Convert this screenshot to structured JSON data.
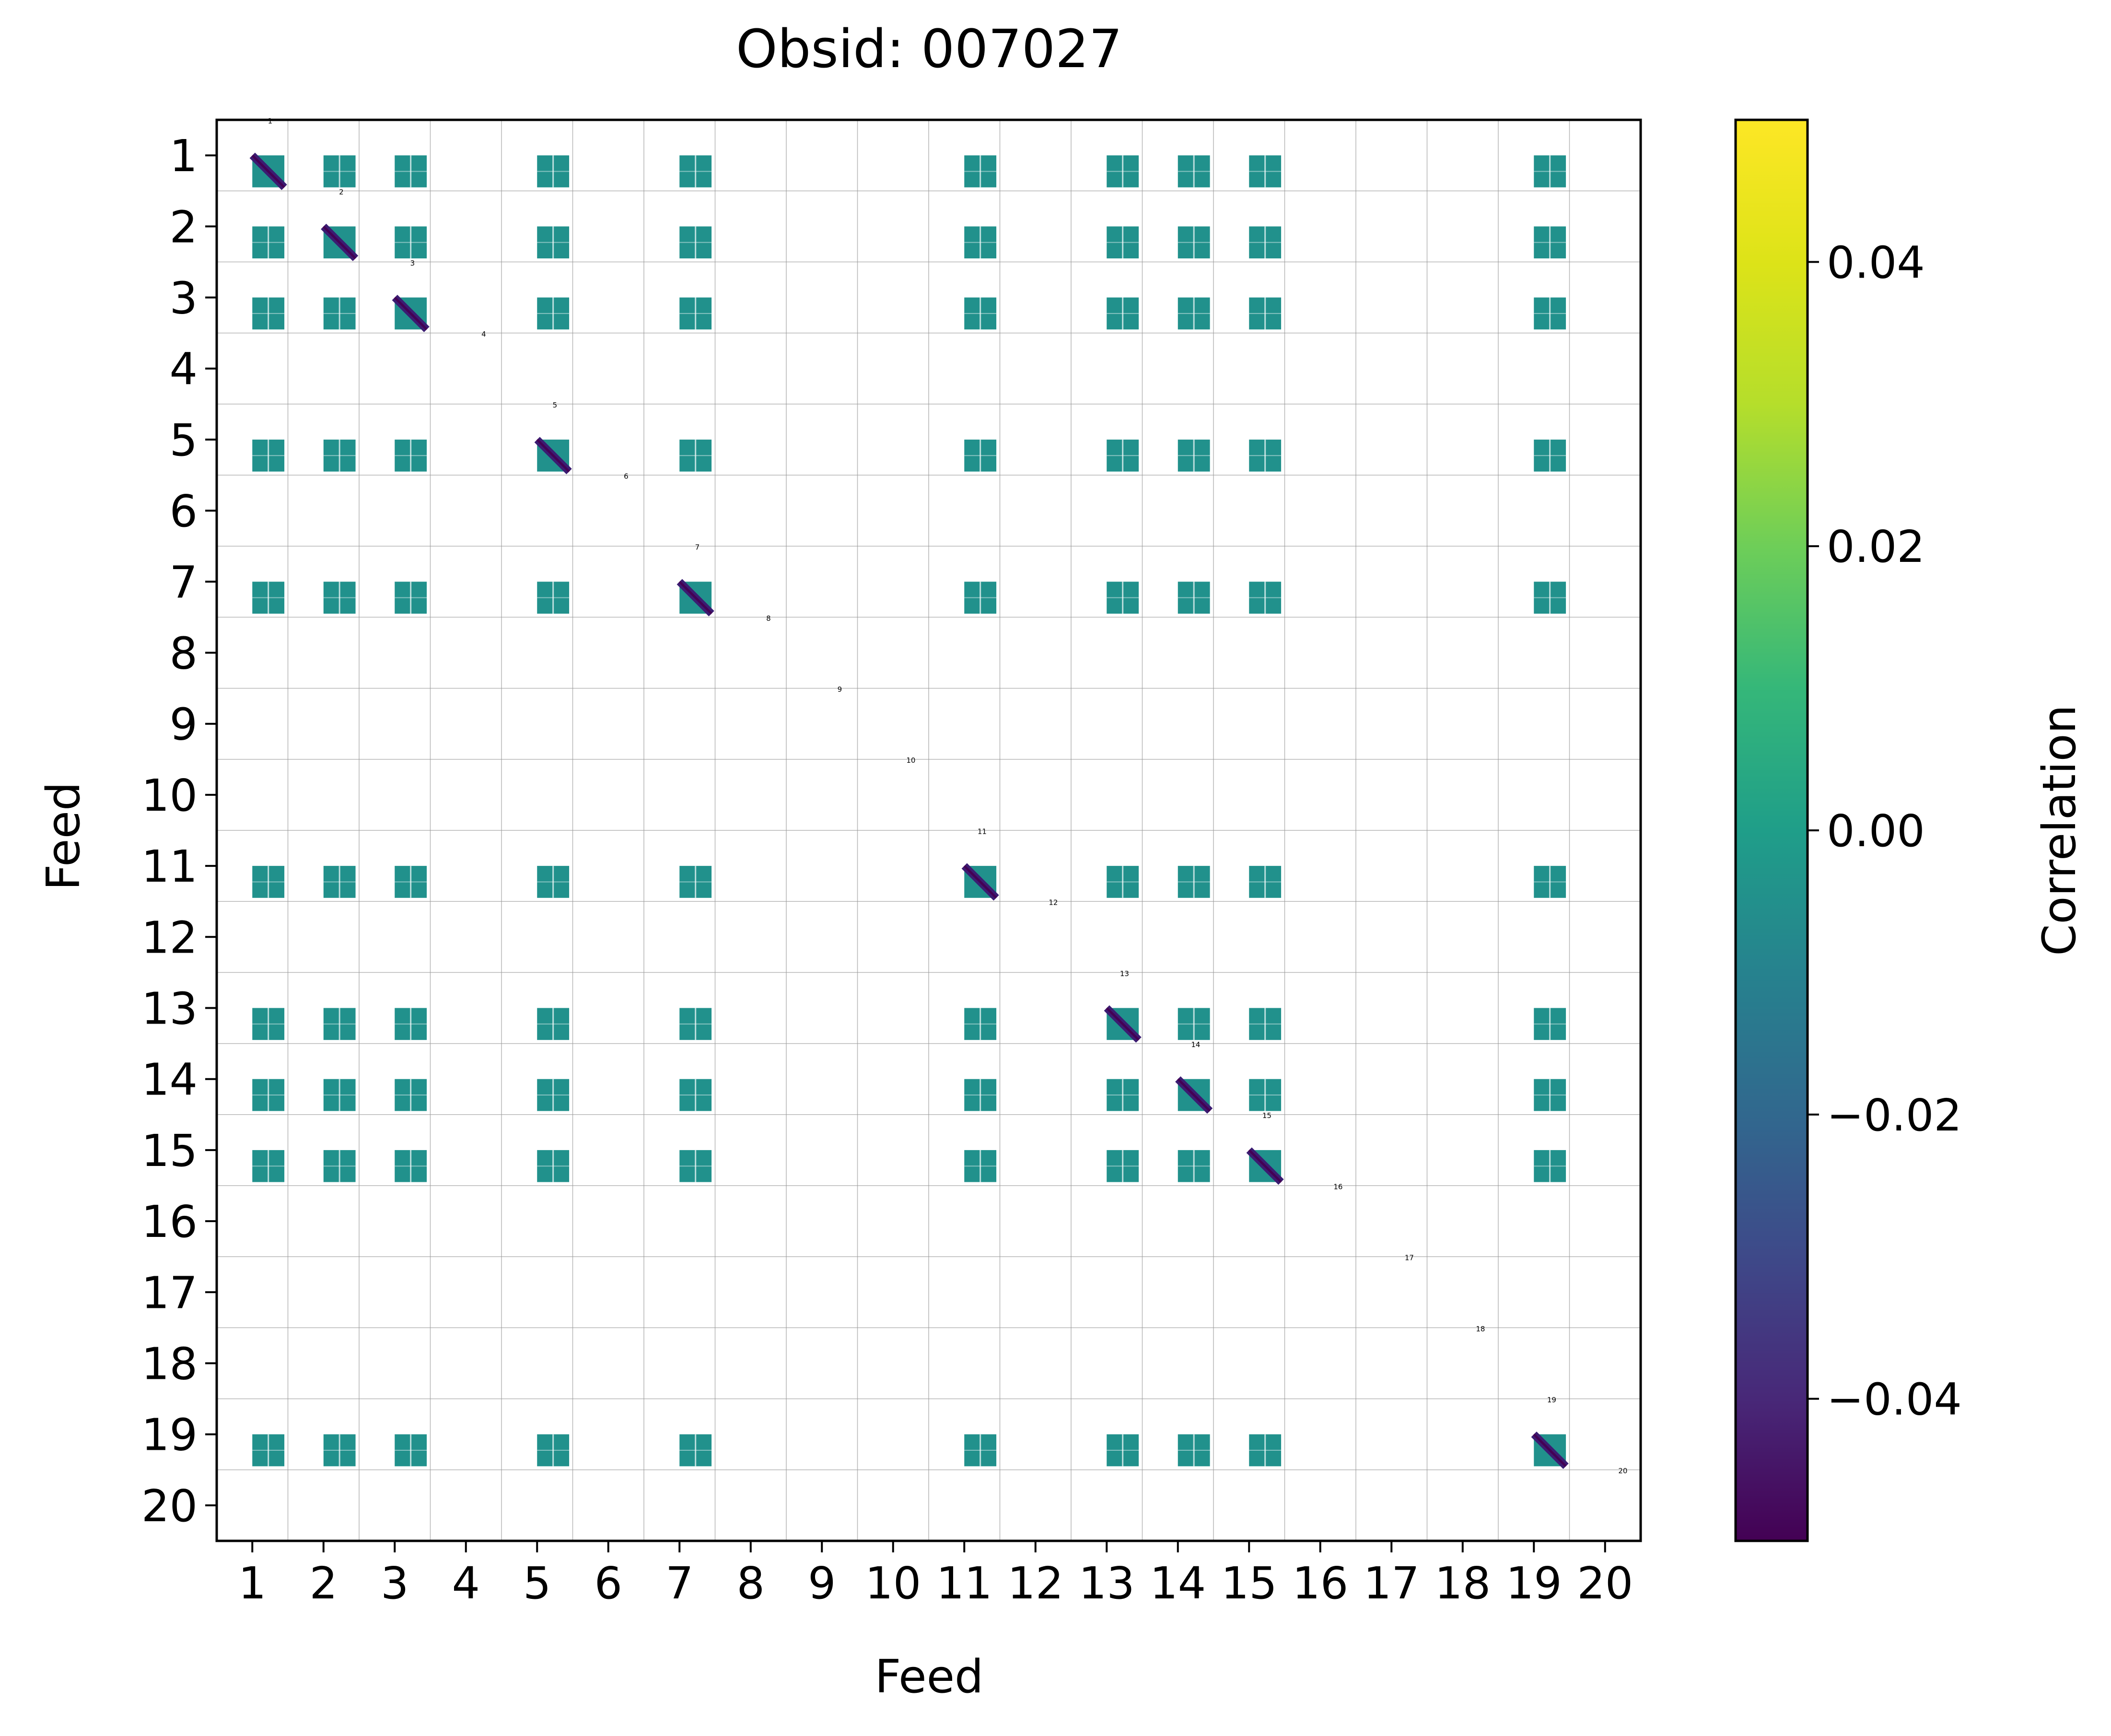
{
  "chart_data": {
    "type": "heatmap",
    "title": "Obsid: 007027",
    "xlabel": "Feed",
    "ylabel": "Feed",
    "colorbar_label": "Correlation",
    "colormap": "viridis",
    "clim": [
      -0.05,
      0.05
    ],
    "colorbar_ticks": [
      {
        "value": 0.04,
        "label": "0.04"
      },
      {
        "value": 0.02,
        "label": "0.02"
      },
      {
        "value": 0.0,
        "label": "0.00"
      },
      {
        "value": -0.02,
        "label": "−0.02"
      },
      {
        "value": -0.04,
        "label": "−0.04"
      }
    ],
    "feeds": [
      1,
      2,
      3,
      4,
      5,
      6,
      7,
      8,
      9,
      10,
      11,
      12,
      13,
      14,
      15,
      16,
      17,
      18,
      19,
      20
    ],
    "x_tick_labels": [
      "1",
      "2",
      "3",
      "4",
      "5",
      "6",
      "7",
      "8",
      "9",
      "10",
      "11",
      "12",
      "13",
      "14",
      "15",
      "16",
      "17",
      "18",
      "19",
      "20"
    ],
    "y_tick_labels": [
      "1",
      "2",
      "3",
      "4",
      "5",
      "6",
      "7",
      "8",
      "9",
      "10",
      "11",
      "12",
      "13",
      "14",
      "15",
      "16",
      "17",
      "18",
      "19",
      "20"
    ],
    "diagonal_labels": [
      "1",
      "2",
      "3",
      "4",
      "5",
      "6",
      "7",
      "8",
      "9",
      "10",
      "11",
      "12",
      "13",
      "14",
      "15",
      "16",
      "17",
      "18",
      "19",
      "20"
    ],
    "active_feeds": [
      1,
      2,
      3,
      5,
      7,
      11,
      13,
      14,
      15,
      19
    ],
    "offdiagonal_value": 0.0,
    "diagonal_value": -0.045,
    "grid": true,
    "colors": {
      "offdiag": "#21918c",
      "diag": "#3b1c72",
      "diag_line": "#440154"
    }
  }
}
